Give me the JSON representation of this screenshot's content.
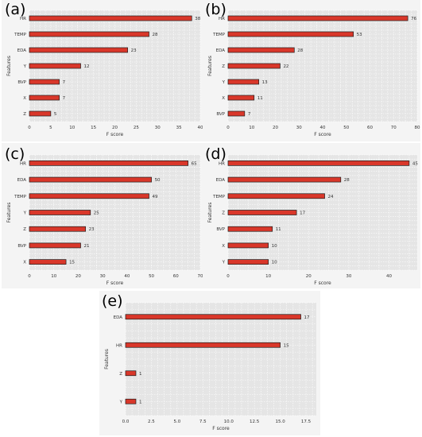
{
  "chart_data": [
    {
      "type": "bar",
      "orientation": "horizontal",
      "panel_label": "(a)",
      "categories": [
        "HR",
        "TEMP",
        "EDA",
        "Y",
        "BVP",
        "X",
        "Z"
      ],
      "values": [
        38,
        28,
        23,
        12,
        7,
        7,
        5
      ],
      "value_labels": [
        "38",
        "28",
        "23",
        "12",
        "7",
        "7",
        "5"
      ],
      "xlabel": "F score",
      "ylabel": "Features",
      "xlim": [
        0,
        40
      ],
      "xticks": [
        0,
        5,
        10,
        15,
        20,
        25,
        30,
        35,
        40
      ],
      "xtick_labels": [
        "0",
        "5",
        "10",
        "15",
        "20",
        "25",
        "30",
        "35",
        "40"
      ],
      "grid": true
    },
    {
      "type": "bar",
      "orientation": "horizontal",
      "panel_label": "(b)",
      "categories": [
        "HR",
        "TEMP",
        "EDA",
        "Z",
        "Y",
        "X",
        "BVP"
      ],
      "values": [
        76,
        53,
        28,
        22,
        13,
        11,
        7
      ],
      "value_labels": [
        "76",
        "53",
        "28",
        "22",
        "13",
        "11",
        "7"
      ],
      "xlabel": "F score",
      "ylabel": "Features",
      "xlim": [
        0,
        80
      ],
      "xticks": [
        0,
        10,
        20,
        30,
        40,
        50,
        60,
        70,
        80
      ],
      "xtick_labels": [
        "0",
        "10",
        "20",
        "30",
        "40",
        "50",
        "60",
        "70",
        "80"
      ],
      "grid": true
    },
    {
      "type": "bar",
      "orientation": "horizontal",
      "panel_label": "(c)",
      "categories": [
        "HR",
        "EDA",
        "TEMP",
        "Y",
        "Z",
        "BVP",
        "X"
      ],
      "values": [
        65,
        50,
        49,
        25,
        23,
        21,
        15
      ],
      "value_labels": [
        "65",
        "50",
        "49",
        "25",
        "23",
        "21",
        "15"
      ],
      "xlabel": "F score",
      "ylabel": "Features",
      "xlim": [
        0,
        70
      ],
      "xticks": [
        0,
        10,
        20,
        30,
        40,
        50,
        60,
        70
      ],
      "xtick_labels": [
        "0",
        "10",
        "20",
        "30",
        "40",
        "50",
        "60",
        "70"
      ],
      "grid": true
    },
    {
      "type": "bar",
      "orientation": "horizontal",
      "panel_label": "(d)",
      "categories": [
        "HR",
        "EDA",
        "TEMP",
        "Z",
        "BVP",
        "X",
        "Y"
      ],
      "values": [
        45,
        28,
        24,
        17,
        11,
        10,
        10
      ],
      "value_labels": [
        "45",
        "28",
        "24",
        "17",
        "11",
        "10",
        "10"
      ],
      "xlabel": "F score",
      "ylabel": "Features",
      "xlim": [
        0,
        47
      ],
      "xticks": [
        0,
        10,
        20,
        30,
        40
      ],
      "xtick_labels": [
        "0",
        "10",
        "20",
        "30",
        "40"
      ],
      "grid": true
    },
    {
      "type": "bar",
      "orientation": "horizontal",
      "panel_label": "(e)",
      "categories": [
        "EDA",
        "HR",
        "Z",
        "Y"
      ],
      "values": [
        17,
        15,
        1,
        1
      ],
      "value_labels": [
        "17",
        "15",
        "1",
        "1"
      ],
      "xlabel": "F score",
      "ylabel": "Features",
      "xlim": [
        0,
        18.5
      ],
      "xticks": [
        0,
        2.5,
        5,
        7.5,
        10,
        12.5,
        15,
        17.5
      ],
      "xtick_labels": [
        "0.0",
        "2.5",
        "5.0",
        "7.5",
        "10.0",
        "12.5",
        "15.0",
        "17.5"
      ],
      "grid": true
    }
  ]
}
